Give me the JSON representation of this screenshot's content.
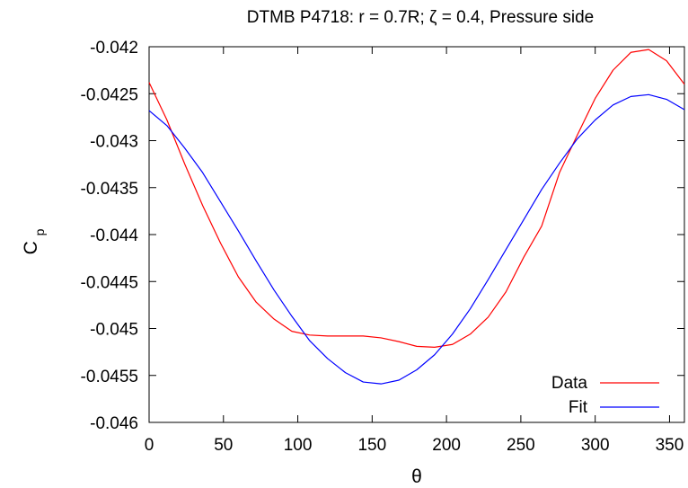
{
  "chart_data": {
    "type": "line",
    "title": "DTMB P4718: r = 0.7R; ζ = 0.4, Pressure side",
    "xlabel": "θ",
    "ylabel": "C",
    "ylabel_sub": "p",
    "xlim": [
      0,
      360
    ],
    "ylim": [
      -0.046,
      -0.042
    ],
    "x_ticks": [
      0,
      50,
      100,
      150,
      200,
      250,
      300,
      350
    ],
    "x_tick_labels": [
      "0",
      "50",
      "100",
      "150",
      "200",
      "250",
      "300",
      "350"
    ],
    "y_ticks": [
      -0.046,
      -0.0455,
      -0.045,
      -0.0445,
      -0.044,
      -0.0435,
      -0.043,
      -0.0425,
      -0.042
    ],
    "y_tick_labels": [
      "-0.046",
      "-0.0455",
      "-0.045",
      "-0.0445",
      "-0.044",
      "-0.0435",
      "-0.043",
      "-0.0425",
      "-0.042"
    ],
    "grid": false,
    "legend_position": "bottom-right",
    "series": [
      {
        "name": "Data",
        "color": "#ff0000",
        "x": [
          0,
          12,
          24,
          36,
          48,
          60,
          72,
          84,
          96,
          108,
          120,
          132,
          144,
          156,
          168,
          180,
          192,
          204,
          216,
          228,
          240,
          252,
          264,
          276,
          288,
          300,
          312,
          324,
          336,
          348,
          360
        ],
        "y": [
          -0.04238,
          -0.04278,
          -0.04325,
          -0.04369,
          -0.04409,
          -0.04445,
          -0.04472,
          -0.0449,
          -0.04503,
          -0.04507,
          -0.04508,
          -0.04508,
          -0.04508,
          -0.0451,
          -0.04514,
          -0.04519,
          -0.0452,
          -0.04517,
          -0.04506,
          -0.04488,
          -0.04461,
          -0.04424,
          -0.04391,
          -0.04334,
          -0.04294,
          -0.04255,
          -0.04225,
          -0.04206,
          -0.04203,
          -0.04215,
          -0.0424
        ]
      },
      {
        "name": "Fit",
        "color": "#0000ff",
        "x": [
          0,
          12,
          24,
          36,
          48,
          60,
          72,
          84,
          96,
          108,
          120,
          132,
          144,
          156,
          168,
          180,
          192,
          204,
          216,
          228,
          240,
          252,
          264,
          276,
          288,
          300,
          312,
          324,
          336,
          348,
          360
        ],
        "y": [
          -0.04268,
          -0.04284,
          -0.04308,
          -0.04334,
          -0.04365,
          -0.04396,
          -0.04428,
          -0.04459,
          -0.04487,
          -0.04513,
          -0.04532,
          -0.04547,
          -0.04557,
          -0.04559,
          -0.04555,
          -0.04544,
          -0.04528,
          -0.04506,
          -0.04479,
          -0.04448,
          -0.04416,
          -0.04384,
          -0.04352,
          -0.04324,
          -0.04298,
          -0.04278,
          -0.04262,
          -0.04253,
          -0.04251,
          -0.04256,
          -0.04267
        ]
      }
    ]
  }
}
